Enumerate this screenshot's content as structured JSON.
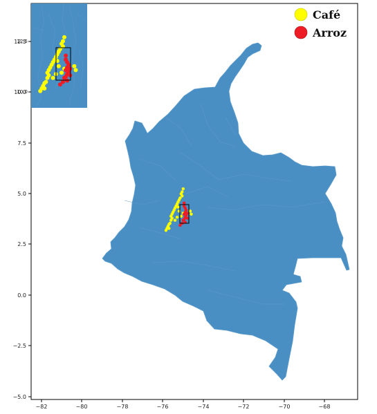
{
  "colors": {
    "land": "#4a8fc4",
    "land_edge": "#5b9bcc",
    "cafe": "#ffff00",
    "arroz": "#ee1c25",
    "frame": "#000000"
  },
  "legend": [
    {
      "name": "cafe",
      "label": "Café",
      "color": "#ffff00"
    },
    {
      "name": "arroz",
      "label": "Arroz",
      "color": "#ee1c25"
    }
  ],
  "main_axes": {
    "x_ticks": [
      "−82",
      "−80",
      "−78",
      "−76",
      "−74",
      "−72",
      "−70",
      "−68"
    ],
    "y_ticks": [
      "12.5",
      "10.0",
      "7.5",
      "5.0",
      "2.5",
      "0.0",
      "−2.5",
      "−5.0"
    ]
  },
  "inset_axes": {
    "y_ticks": [
      "12.5",
      "10.0"
    ]
  },
  "chart_data": {
    "type": "scatter",
    "series": [
      {
        "name": "Café",
        "color": "#ffff00",
        "points": [
          [
            -75.0,
            5.25
          ],
          [
            -75.05,
            5.1
          ],
          [
            -75.1,
            5.0
          ],
          [
            -75.05,
            4.9
          ],
          [
            -75.15,
            4.8
          ],
          [
            -75.2,
            4.7
          ],
          [
            -75.25,
            4.6
          ],
          [
            -75.3,
            4.5
          ],
          [
            -75.35,
            4.4
          ],
          [
            -75.4,
            4.3
          ],
          [
            -75.45,
            4.2
          ],
          [
            -75.5,
            4.1
          ],
          [
            -75.55,
            4.0
          ],
          [
            -75.6,
            3.9
          ],
          [
            -75.55,
            3.8
          ],
          [
            -75.6,
            3.7
          ],
          [
            -75.7,
            3.5
          ],
          [
            -75.75,
            3.4
          ],
          [
            -75.8,
            3.3
          ],
          [
            -75.85,
            3.2
          ],
          [
            -75.7,
            3.3
          ],
          [
            -75.65,
            3.55
          ],
          [
            -75.25,
            4.35
          ],
          [
            -75.2,
            4.15
          ],
          [
            -74.65,
            4.15
          ],
          [
            -74.6,
            4.0
          ],
          [
            -75.0,
            4.05
          ],
          [
            -75.1,
            3.9
          ],
          [
            -75.3,
            3.85
          ],
          [
            -75.4,
            3.7
          ]
        ]
      },
      {
        "name": "Arroz",
        "color": "#ee1c25",
        "points": [
          [
            -74.95,
            4.4
          ],
          [
            -74.9,
            4.3
          ],
          [
            -74.85,
            4.2
          ],
          [
            -74.9,
            4.1
          ],
          [
            -74.95,
            4.0
          ],
          [
            -74.8,
            4.05
          ],
          [
            -74.85,
            3.95
          ],
          [
            -74.9,
            3.85
          ],
          [
            -74.95,
            3.75
          ],
          [
            -75.0,
            3.7
          ],
          [
            -74.8,
            3.8
          ],
          [
            -74.95,
            4.55
          ],
          [
            -74.9,
            3.6
          ],
          [
            -75.05,
            3.55
          ],
          [
            -75.15,
            3.45
          ]
        ]
      }
    ]
  }
}
